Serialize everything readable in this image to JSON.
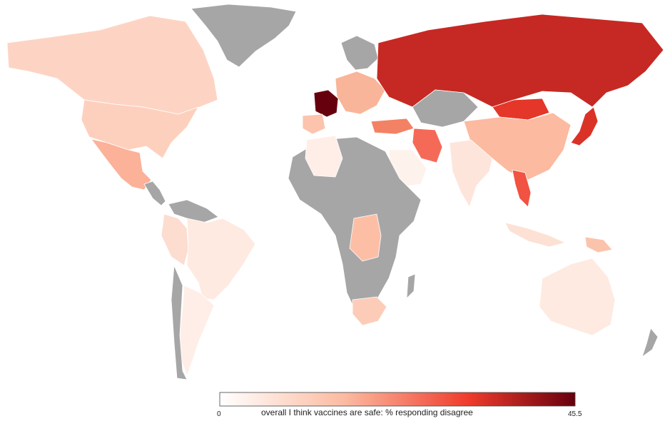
{
  "legend": {
    "title": "overall I think vaccines are safe: % responding disagree",
    "min_label": "0",
    "max_label": "45.5",
    "min_value": 0,
    "max_value": 45.5,
    "color_low": "#ffffff",
    "color_high": "#67000d",
    "no_data_color": "#a6a6a6"
  },
  "countries": [
    {
      "name": "Canada",
      "value": 10
    },
    {
      "name": "United States",
      "value": 11
    },
    {
      "name": "Mexico",
      "value": 17
    },
    {
      "name": "Greenland",
      "value": null
    },
    {
      "name": "Brazil",
      "value": 5
    },
    {
      "name": "Peru",
      "value": 8
    },
    {
      "name": "Argentina",
      "value": 4
    },
    {
      "name": "Russia",
      "value": 36
    },
    {
      "name": "France",
      "value": 45.5
    },
    {
      "name": "China",
      "value": 16
    },
    {
      "name": "Iran",
      "value": 26
    },
    {
      "name": "India",
      "value": 6
    },
    {
      "name": "Japan",
      "value": 34
    },
    {
      "name": "Vietnam",
      "value": 29
    },
    {
      "name": "Australia",
      "value": 5
    },
    {
      "name": "South Africa",
      "value": 12
    },
    {
      "name": "DR Congo",
      "value": 15
    },
    {
      "name": "Saudi Arabia",
      "value": 3
    },
    {
      "name": "Mongolia",
      "value": 33
    },
    {
      "name": "Kazakhstan",
      "value": null
    },
    {
      "name": "Algeria",
      "value": 4
    },
    {
      "name": "Papua New Guinea",
      "value": 14
    },
    {
      "name": "New Zealand",
      "value": null
    }
  ]
}
